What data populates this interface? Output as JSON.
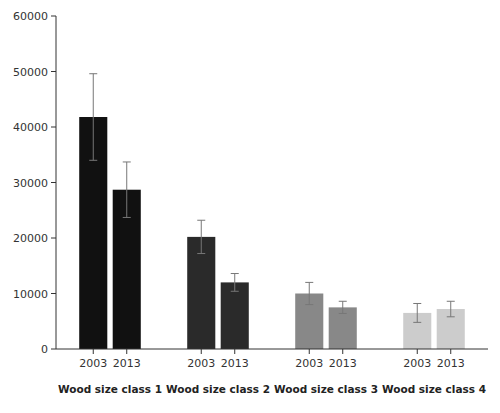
{
  "chart_data": {
    "type": "bar",
    "categories": [
      "Wood size class 1",
      "Wood size class 2",
      "Wood size class 3",
      "Wood size class 4"
    ],
    "series": [
      {
        "name": "2003",
        "values": [
          41800,
          20200,
          10000,
          6500
        ],
        "errors": [
          7800,
          3000,
          2000,
          1700
        ],
        "colors": [
          "#111111",
          "#2a2a2a",
          "#888888",
          "#cccccc"
        ]
      },
      {
        "name": "2013",
        "values": [
          28700,
          12000,
          7500,
          7200
        ],
        "errors": [
          5000,
          1600,
          1100,
          1400
        ],
        "colors": [
          "#111111",
          "#2a2a2a",
          "#888888",
          "#cccccc"
        ]
      }
    ],
    "ylim": [
      0,
      60000
    ],
    "yticks": [
      0,
      10000,
      20000,
      30000,
      40000,
      50000,
      60000
    ],
    "grid": false
  }
}
